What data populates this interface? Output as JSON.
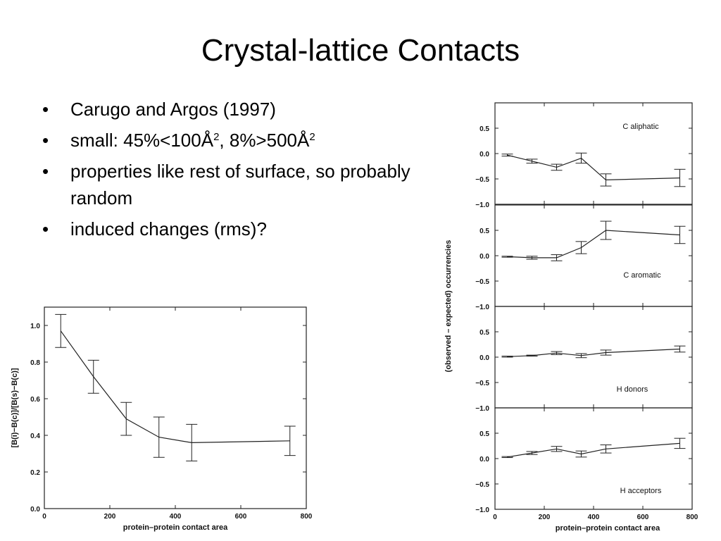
{
  "slide": {
    "title": "Crystal-lattice Contacts",
    "bullets": [
      {
        "parts": [
          "Carugo and Argos (1997)"
        ]
      },
      {
        "parts": [
          "small: 45%<100Å",
          "2",
          ", 8%>500Å",
          "2"
        ]
      },
      {
        "parts": [
          "properties like rest of surface, so probably random"
        ]
      },
      {
        "parts": [
          "induced changes (rms)?"
        ]
      }
    ]
  },
  "chart_data": [
    {
      "type": "line",
      "title": "",
      "xlabel": "protein–protein contact area",
      "ylabel": "[B(i)−B(c)]/[B(s)−B(c)]",
      "xlim": [
        0,
        800
      ],
      "ylim": [
        0,
        1.1
      ],
      "xticks": [
        0,
        200,
        400,
        600,
        800
      ],
      "yticks": [
        "0.0",
        "0.2",
        "0.4",
        "0.6",
        "0.8",
        "1.0"
      ],
      "grid": false,
      "series": [
        {
          "x": [
            50,
            150,
            250,
            350,
            450,
            750
          ],
          "y": [
            0.97,
            0.72,
            0.49,
            0.39,
            0.36,
            0.37
          ],
          "err": [
            0.09,
            0.09,
            0.09,
            0.11,
            0.1,
            0.08
          ]
        }
      ]
    },
    {
      "type": "line",
      "title": "",
      "xlabel": "protein–protein contact area",
      "ylabel": "(observed – expected) occurrencies",
      "xlim": [
        0,
        800
      ],
      "ylim": [
        -1.0,
        1.0
      ],
      "xticks": [
        0,
        200,
        400,
        600,
        800
      ],
      "yticks": [
        "−1.0",
        "−0.5",
        "0.0",
        "0.5"
      ],
      "grid": false,
      "panels": [
        {
          "label": "C aliphatic",
          "x": [
            50,
            150,
            250,
            350,
            450,
            750
          ],
          "y": [
            -0.03,
            -0.15,
            -0.27,
            -0.09,
            -0.52,
            -0.48
          ],
          "err": [
            0.02,
            0.04,
            0.06,
            0.1,
            0.12,
            0.17
          ]
        },
        {
          "label": "C aromatic",
          "x": [
            50,
            150,
            250,
            350,
            450,
            750
          ],
          "y": [
            -0.02,
            -0.04,
            -0.04,
            0.16,
            0.5,
            0.41
          ],
          "err": [
            0.01,
            0.03,
            0.06,
            0.12,
            0.18,
            0.17
          ]
        },
        {
          "label": "H donors",
          "x": [
            50,
            150,
            250,
            350,
            450,
            750
          ],
          "y": [
            0.01,
            0.03,
            0.08,
            0.03,
            0.09,
            0.16
          ],
          "err": [
            0.01,
            0.01,
            0.03,
            0.04,
            0.05,
            0.06
          ]
        },
        {
          "label": "H acceptors",
          "x": [
            50,
            150,
            250,
            350,
            450,
            750
          ],
          "y": [
            0.03,
            0.11,
            0.19,
            0.09,
            0.19,
            0.3
          ],
          "err": [
            0.01,
            0.03,
            0.05,
            0.06,
            0.08,
            0.1
          ]
        }
      ]
    }
  ]
}
